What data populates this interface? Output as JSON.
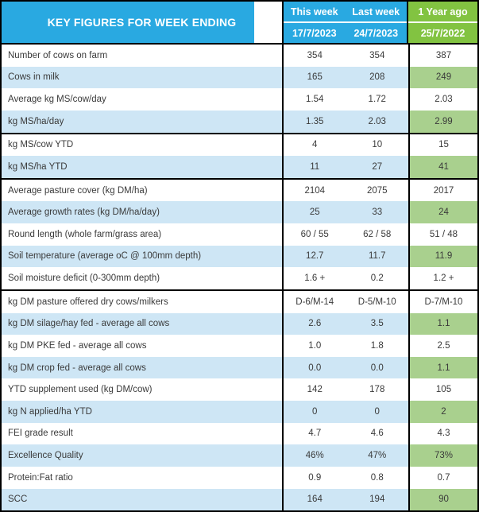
{
  "title": "KEY FIGURES FOR WEEK ENDING",
  "columns": [
    {
      "label": "This week",
      "date": "17/7/2023"
    },
    {
      "label": "Last week",
      "date": "24/7/2023"
    },
    {
      "label": "1 Year ago",
      "date": "25/7/2022"
    }
  ],
  "colors": {
    "header_blue": "#29A9E1",
    "header_green": "#82C341",
    "row_blue": "#CEE6F5",
    "cell_green": "#A9D08E",
    "border": "#000000",
    "body_text": "#3A3A3A"
  },
  "rows": [
    {
      "label": "Number of cows on farm",
      "this_week": "354",
      "last_week": "354",
      "year_ago": "387",
      "shaded": false,
      "section_end": false
    },
    {
      "label": "Cows in milk",
      "this_week": "165",
      "last_week": "208",
      "year_ago": "249",
      "shaded": true,
      "section_end": false
    },
    {
      "label": "Average kg MS/cow/day",
      "this_week": "1.54",
      "last_week": "1.72",
      "year_ago": "2.03",
      "shaded": false,
      "section_end": false
    },
    {
      "label": "kg MS/ha/day",
      "this_week": "1.35",
      "last_week": "2.03",
      "year_ago": "2.99",
      "shaded": true,
      "section_end": true
    },
    {
      "label": "kg MS/cow YTD",
      "this_week": "4",
      "last_week": "10",
      "year_ago": "15",
      "shaded": false,
      "section_end": false
    },
    {
      "label": "kg MS/ha YTD",
      "this_week": "11",
      "last_week": "27",
      "year_ago": "41",
      "shaded": true,
      "section_end": true
    },
    {
      "label": "Average pasture cover (kg DM/ha)",
      "this_week": "2104",
      "last_week": "2075",
      "year_ago": "2017",
      "shaded": false,
      "section_end": false
    },
    {
      "label": "Average growth rates (kg DM/ha/day)",
      "this_week": "25",
      "last_week": "33",
      "year_ago": "24",
      "shaded": true,
      "section_end": false
    },
    {
      "label": "Round length (whole farm/grass area)",
      "this_week": "60 / 55",
      "last_week": "62 / 58",
      "year_ago": "51 / 48",
      "shaded": false,
      "section_end": false
    },
    {
      "label": "Soil temperature (average oC  @ 100mm depth)",
      "this_week": "12.7",
      "last_week": "11.7",
      "year_ago": "11.9",
      "shaded": true,
      "section_end": false
    },
    {
      "label": "Soil moisture deficit (0-300mm depth)",
      "this_week": "1.6 +",
      "last_week": "0.2",
      "year_ago": "1.2 +",
      "shaded": false,
      "section_end": true
    },
    {
      "label": "kg DM pasture offered dry cows/milkers",
      "this_week": "D-6/M-14",
      "last_week": "D-5/M-10",
      "year_ago": "D-7/M-10",
      "shaded": false,
      "section_end": false
    },
    {
      "label": "kg DM silage/hay fed - average all cows",
      "this_week": "2.6",
      "last_week": "3.5",
      "year_ago": "1.1",
      "shaded": true,
      "section_end": false
    },
    {
      "label": "kg DM PKE fed - average all cows",
      "this_week": "1.0",
      "last_week": "1.8",
      "year_ago": "2.5",
      "shaded": false,
      "section_end": false
    },
    {
      "label": "kg DM crop fed - average all cows",
      "this_week": "0.0",
      "last_week": "0.0",
      "year_ago": "1.1",
      "shaded": true,
      "section_end": false
    },
    {
      "label": "YTD supplement used (kg DM/cow)",
      "this_week": "142",
      "last_week": "178",
      "year_ago": "105",
      "shaded": false,
      "section_end": false
    },
    {
      "label": "kg N applied/ha YTD",
      "this_week": "0",
      "last_week": "0",
      "year_ago": "2",
      "shaded": true,
      "section_end": false
    },
    {
      "label": "FEI grade result",
      "this_week": "4.7",
      "last_week": "4.6",
      "year_ago": "4.3",
      "shaded": false,
      "section_end": false
    },
    {
      "label": "Excellence Quality",
      "this_week": "46%",
      "last_week": "47%",
      "year_ago": "73%",
      "shaded": true,
      "section_end": false
    },
    {
      "label": "Protein:Fat ratio",
      "this_week": "0.9",
      "last_week": "0.8",
      "year_ago": "0.7",
      "shaded": false,
      "section_end": false
    },
    {
      "label": "SCC",
      "this_week": "164",
      "last_week": "194",
      "year_ago": "90",
      "shaded": true,
      "section_end": false
    }
  ]
}
